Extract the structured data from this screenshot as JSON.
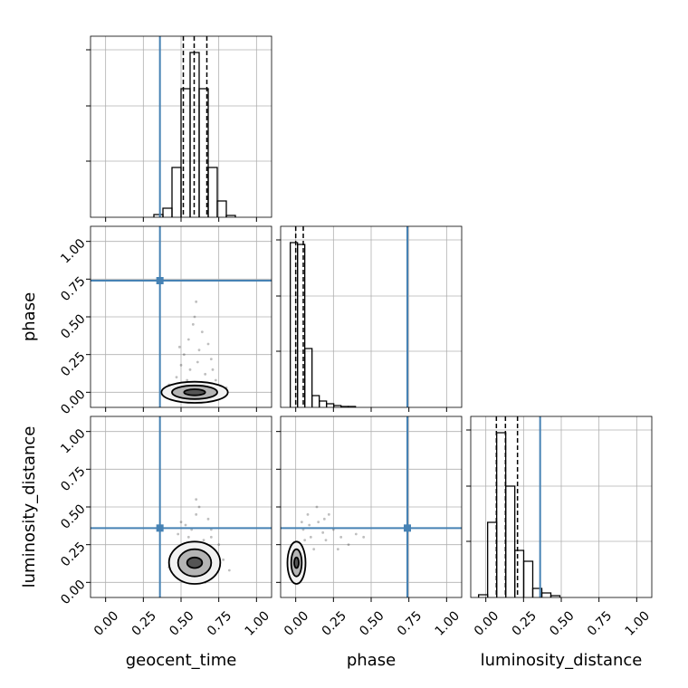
{
  "chart_data": {
    "type": "corner",
    "lim": [
      -0.1,
      1.1
    ],
    "ticks": [
      {
        "value": 0,
        "label": "0.00"
      },
      {
        "value": 0.25,
        "label": "0.25"
      },
      {
        "value": 0.5,
        "label": "0.50"
      },
      {
        "value": 0.75,
        "label": "0.75"
      },
      {
        "value": 1,
        "label": "1.00"
      }
    ],
    "hist_ylim": [
      0,
      200
    ],
    "hist_yticks": [
      62,
      123,
      185
    ],
    "truth_color": "#4682b4",
    "grid": true,
    "parameters": [
      {
        "name": "geocent_time",
        "truth": 0.36,
        "quantiles": [
          0.515,
          0.587,
          0.671
        ],
        "bins": [
          0.32,
          0.38,
          0.44,
          0.5,
          0.56,
          0.62,
          0.68,
          0.74,
          0.8,
          0.86
        ],
        "counts": [
          3,
          10,
          55,
          142,
          182,
          142,
          55,
          18,
          2
        ]
      },
      {
        "name": "phase",
        "truth": 0.74,
        "quantiles": [
          0.0,
          0.05
        ],
        "bins": [
          -0.036,
          0.012,
          0.06,
          0.108,
          0.156,
          0.204,
          0.252,
          0.3,
          0.348,
          0.396
        ],
        "counts": [
          182,
          180,
          65,
          13,
          7,
          4,
          2,
          1,
          1
        ]
      },
      {
        "name": "luminosity_distance",
        "truth": 0.36,
        "quantiles": [
          0.07,
          0.13,
          0.21
        ],
        "bins": [
          -0.048,
          0.012,
          0.072,
          0.132,
          0.192,
          0.251,
          0.311,
          0.371,
          0.431,
          0.491
        ],
        "counts": [
          3,
          83,
          182,
          123,
          52,
          40,
          10,
          5,
          2
        ]
      }
    ],
    "contour_fills": [
      "#f2f2f2",
      "#b4b4b4",
      "#555555"
    ],
    "pairs": [
      {
        "x": 0,
        "y": 1,
        "center": [
          0.59,
          0.0
        ],
        "rx": [
          0.22,
          0.15,
          0.07
        ],
        "ry": [
          0.07,
          0.045,
          0.02
        ],
        "points": [
          [
            0.55,
            0.35
          ],
          [
            0.62,
            0.28
          ],
          [
            0.5,
            0.18
          ],
          [
            0.7,
            0.22
          ],
          [
            0.58,
            0.45
          ],
          [
            0.66,
            0.12
          ],
          [
            0.47,
            0.1
          ],
          [
            0.73,
            0.08
          ],
          [
            0.52,
            0.25
          ],
          [
            0.6,
            0.6
          ],
          [
            0.64,
            0.4
          ],
          [
            0.42,
            0.05
          ],
          [
            0.8,
            0.03
          ],
          [
            0.56,
            0.15
          ],
          [
            0.68,
            0.32
          ],
          [
            0.49,
            0.3
          ],
          [
            0.61,
            0.2
          ],
          [
            0.54,
            0.08
          ],
          [
            0.71,
            0.15
          ],
          [
            0.59,
            0.5
          ]
        ]
      },
      {
        "x": 0,
        "y": 2,
        "center": [
          0.59,
          0.13
        ],
        "rx": [
          0.17,
          0.11,
          0.05
        ],
        "ry": [
          0.14,
          0.09,
          0.035
        ],
        "points": [
          [
            0.5,
            0.4
          ],
          [
            0.6,
            0.45
          ],
          [
            0.7,
            0.35
          ],
          [
            0.55,
            0.3
          ],
          [
            0.65,
            0.28
          ],
          [
            0.45,
            0.2
          ],
          [
            0.78,
            0.15
          ],
          [
            0.62,
            0.5
          ],
          [
            0.52,
            0.02
          ],
          [
            0.72,
            0.05
          ],
          [
            0.57,
            0.35
          ],
          [
            0.68,
            0.42
          ],
          [
            0.48,
            0.32
          ],
          [
            0.75,
            0.25
          ],
          [
            0.42,
            0.1
          ],
          [
            0.66,
            0.0
          ],
          [
            0.6,
            0.55
          ],
          [
            0.53,
            0.38
          ],
          [
            0.82,
            0.08
          ],
          [
            0.7,
            0.3
          ]
        ]
      },
      {
        "x": 1,
        "y": 2,
        "center": [
          0.005,
          0.13
        ],
        "rx": [
          0.06,
          0.035,
          0.015
        ],
        "ry": [
          0.14,
          0.09,
          0.035
        ],
        "points": [
          [
            0.05,
            0.35
          ],
          [
            0.1,
            0.3
          ],
          [
            0.15,
            0.4
          ],
          [
            0.2,
            0.28
          ],
          [
            0.25,
            0.35
          ],
          [
            0.08,
            0.45
          ],
          [
            0.3,
            0.3
          ],
          [
            0.12,
            0.22
          ],
          [
            0.18,
            0.33
          ],
          [
            0.35,
            0.25
          ],
          [
            0.04,
            0.4
          ],
          [
            0.22,
            0.45
          ],
          [
            0.06,
            0.28
          ],
          [
            0.4,
            0.32
          ],
          [
            0.14,
            0.5
          ],
          [
            0.28,
            0.22
          ],
          [
            0.09,
            0.38
          ],
          [
            0.45,
            0.3
          ],
          [
            0.03,
            0.25
          ],
          [
            0.19,
            0.42
          ]
        ]
      }
    ]
  }
}
